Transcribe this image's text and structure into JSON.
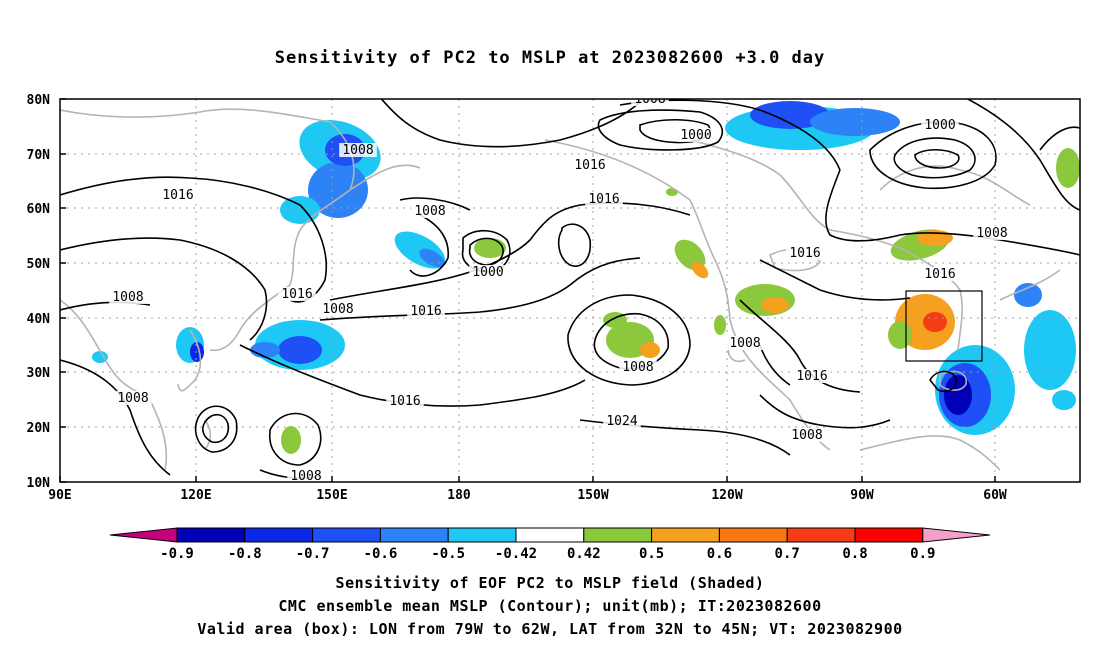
{
  "title": "Sensitivity of PC2 to MSLP at 2023082600 +3.0 day",
  "lat_labels": [
    "80N",
    "70N",
    "60N",
    "50N",
    "40N",
    "30N",
    "20N",
    "10N"
  ],
  "lon_labels": [
    "90E",
    "120E",
    "150E",
    "180",
    "150W",
    "120W",
    "90W",
    "60W"
  ],
  "contour_labels": [
    "1008",
    "1000",
    "1000",
    "1008",
    "1016",
    "1016",
    "1016",
    "1008",
    "1000",
    "1016",
    "1008",
    "1016",
    "1016",
    "1008",
    "1016",
    "1008",
    "1016",
    "1024",
    "1008",
    "1008",
    "1016",
    "1008",
    "1008",
    "1008"
  ],
  "colorbar": {
    "ticks": [
      "-0.9",
      "-0.8",
      "-0.7",
      "-0.6",
      "-0.5",
      "-0.42",
      "0.42",
      "0.5",
      "0.6",
      "0.7",
      "0.8",
      "0.9"
    ],
    "colors": [
      "#c7007f",
      "#0000b8",
      "#0a28e6",
      "#1e50f5",
      "#2d82f5",
      "#1ec8f5",
      "#ffffff",
      "#8cc83c",
      "#f5a01e",
      "#f57814",
      "#f53c14",
      "#ff0000",
      "#f5a0c8"
    ]
  },
  "captions": [
    "Sensitivity of EOF PC2 to MSLP field (Shaded)",
    "CMC ensemble mean MSLP (Contour); unit(mb); IT:2023082600",
    "Valid area (box): LON from 79W to 62W, LAT from 32N to 45N; VT: 2023082900"
  ]
}
